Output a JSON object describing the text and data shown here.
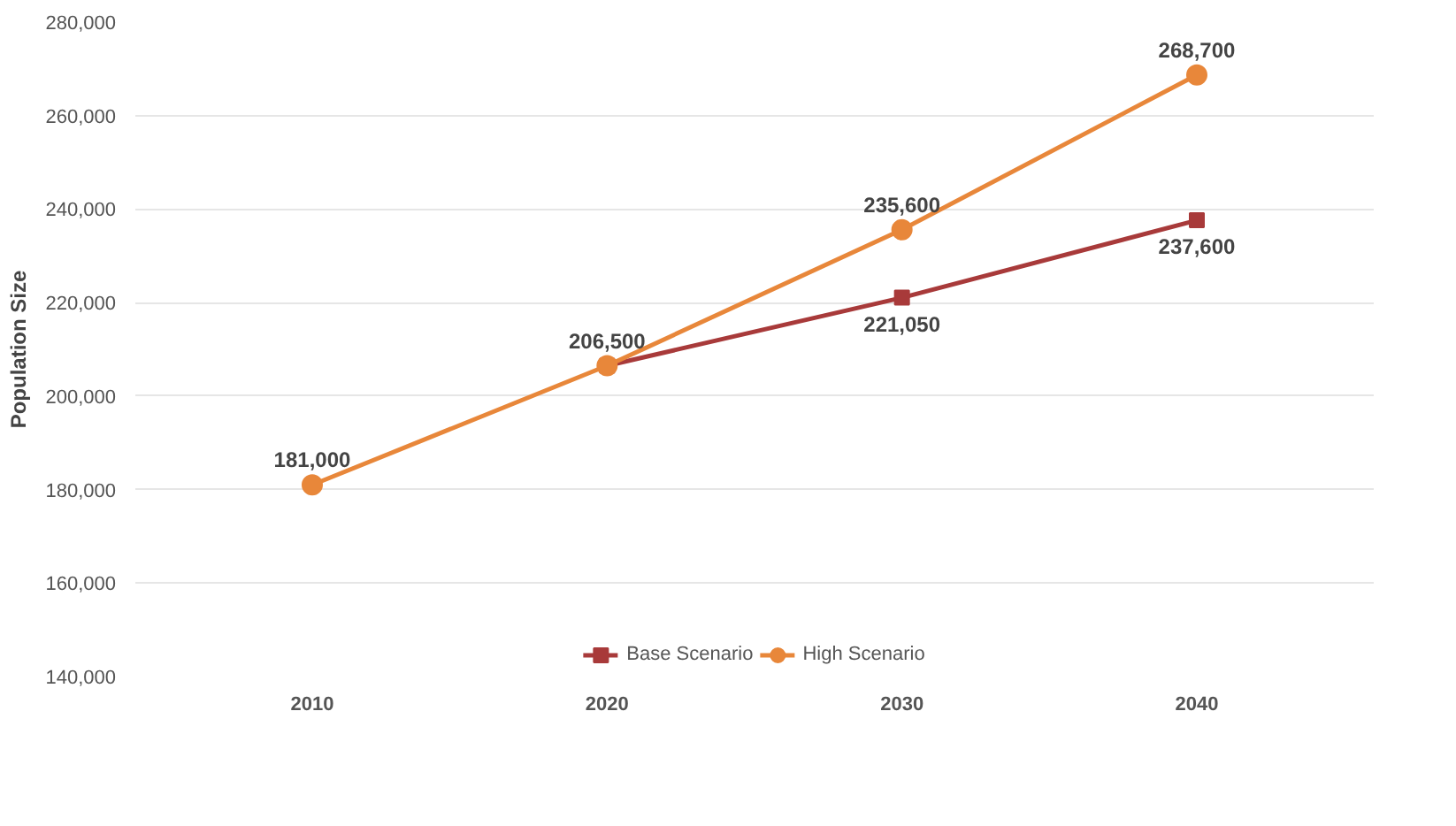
{
  "chart_data": {
    "type": "line",
    "ylabel": "Population Size",
    "categories": [
      "2010",
      "2020",
      "2030",
      "2040"
    ],
    "ylim": [
      140000,
      280000
    ],
    "yticks": [
      {
        "value": 140000,
        "label": "140,000"
      },
      {
        "value": 160000,
        "label": "160,000"
      },
      {
        "value": 180000,
        "label": "180,000"
      },
      {
        "value": 200000,
        "label": "200,000"
      },
      {
        "value": 220000,
        "label": "220,000"
      },
      {
        "value": 240000,
        "label": "240,000"
      },
      {
        "value": 260000,
        "label": "260,000"
      },
      {
        "value": 280000,
        "label": "280,000"
      }
    ],
    "grid": "y",
    "legend": "bottom",
    "series": [
      {
        "name": "Base Scenario",
        "color": "#a83a3a",
        "marker": "square",
        "values": [
          null,
          206500,
          221050,
          237600
        ],
        "value_labels": [
          null,
          null,
          "221,050",
          "237,600"
        ]
      },
      {
        "name": "High Scenario",
        "color": "#e8873a",
        "marker": "circle",
        "values": [
          181000,
          206500,
          235600,
          268700
        ],
        "value_labels": [
          "181,000",
          "206,500",
          "235,600",
          "268,700"
        ]
      }
    ]
  }
}
